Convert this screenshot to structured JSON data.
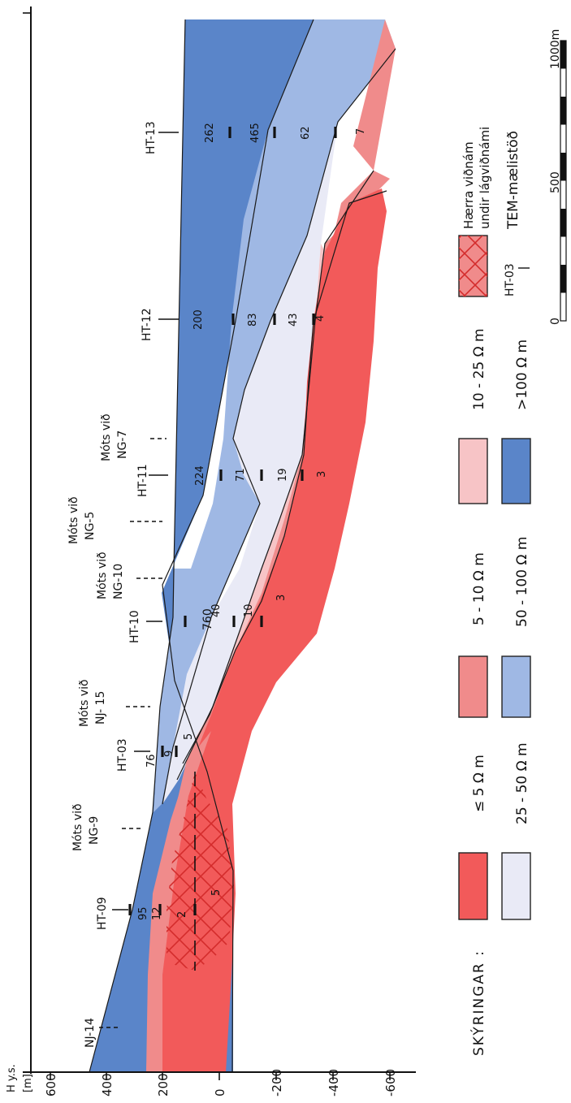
{
  "axis": {
    "title_line1": "H y.s.",
    "title_line2": "[m]",
    "ticks": [
      "600",
      "400",
      "200",
      "0",
      "-200",
      "-400",
      "-600"
    ]
  },
  "colors": {
    "le5": "#f25a5a",
    "r5_10": "#f08b8b",
    "r10_25": "#f7c4c6",
    "r25_50": "#e9eaf6",
    "r50_100": "#9fb8e4",
    "gt100": "#5a85c9"
  },
  "stations": [
    {
      "label": "NJ-14",
      "type": "dashed"
    },
    {
      "label": "HT-09",
      "type": "solid"
    },
    {
      "label_line1": "Móts við",
      "label": "NG-9",
      "type": "dashed"
    },
    {
      "label": "HT-03",
      "type": "solid"
    },
    {
      "label_line1": "Móts við",
      "label": "NJ- 15",
      "type": "dashed"
    },
    {
      "label": "HT-10",
      "type": "solid"
    },
    {
      "label_line1": "Móts við",
      "label": "NG-10",
      "type": "dashed"
    },
    {
      "label_line1": "Móts við",
      "label": "NG-5",
      "type": "dashed"
    },
    {
      "label": "HT-11",
      "type": "solid"
    },
    {
      "label_line1": "Móts við",
      "label": "NG-7",
      "type": "dashed"
    },
    {
      "label": "HT-12",
      "type": "solid"
    },
    {
      "label": "HT-13",
      "type": "solid"
    }
  ],
  "values": {
    "ht09": [
      "95",
      "12",
      "2",
      "5"
    ],
    "ht03": [
      "76",
      "9",
      "5"
    ],
    "ht10": [
      "760",
      "40",
      "10",
      "3"
    ],
    "ht11": [
      "224",
      "71",
      "19",
      "3"
    ],
    "ht12": [
      "200",
      "83",
      "43",
      "4"
    ],
    "ht13": [
      "262",
      "465",
      "62",
      "7"
    ]
  },
  "legend": {
    "title": "SKÝRINGAR :",
    "le5": "≤ 5 Ω m",
    "r5_10": "5 - 10 Ω m",
    "r10_25": "10 - 25 Ω m",
    "r25_50": "25 - 50 Ω m",
    "r50_100": "50 - 100 Ω m",
    "gt100": ">100 Ω m",
    "higher_line1": "Hærra viðnám",
    "higher_line2": "undir lágviðnámi",
    "tem_station": "HT-03",
    "tem_label": "TEM-mælistöð"
  },
  "scale": {
    "ticks": [
      "0",
      "500",
      "1000m"
    ]
  }
}
